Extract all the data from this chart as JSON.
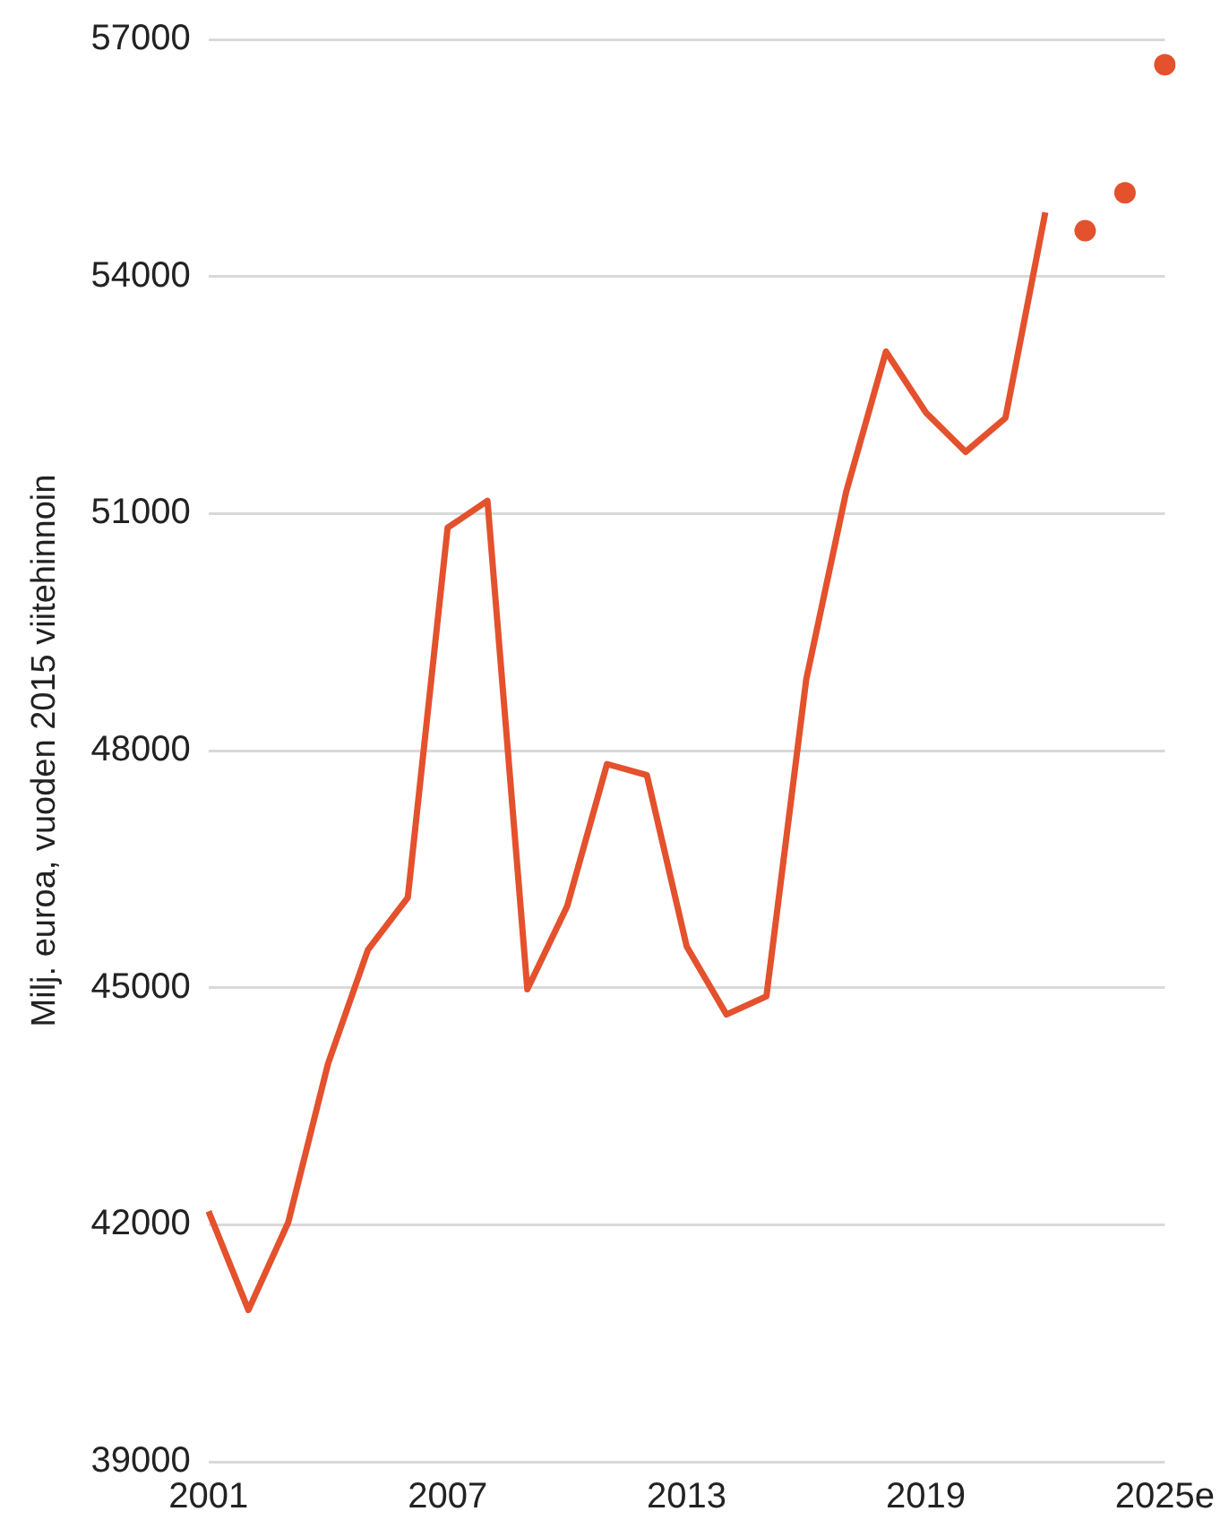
{
  "chart_data": {
    "type": "line",
    "ylabel": "Milj. euroa, vuoden 2015 viitehinnoin",
    "categories": [
      "2001",
      null,
      null,
      null,
      null,
      null,
      "2007",
      null,
      null,
      null,
      null,
      null,
      "2013",
      null,
      null,
      null,
      null,
      null,
      "2019",
      null,
      null,
      null,
      null,
      null,
      "2025e"
    ],
    "series": [
      {
        "color": "#e4512d",
        "values": [
          42170,
          40920,
          42030,
          44040,
          45480,
          46140,
          50820,
          51160,
          44980,
          46030,
          47830,
          47690,
          45520,
          44660,
          44890,
          48900,
          51270,
          53050,
          52280,
          51780,
          52210,
          54810,
          null,
          null,
          null
        ]
      },
      {
        "type": "scatter",
        "color": "#e4512d",
        "values": [
          null,
          null,
          null,
          null,
          null,
          null,
          null,
          null,
          null,
          null,
          null,
          null,
          null,
          null,
          null,
          null,
          null,
          null,
          null,
          null,
          null,
          null,
          54580,
          55060,
          56680
        ]
      }
    ],
    "ylim": [
      39000,
      57000
    ],
    "yticks": [
      39000,
      42000,
      45000,
      48000,
      51000,
      54000,
      57000
    ],
    "grid": "y",
    "legend": false
  }
}
